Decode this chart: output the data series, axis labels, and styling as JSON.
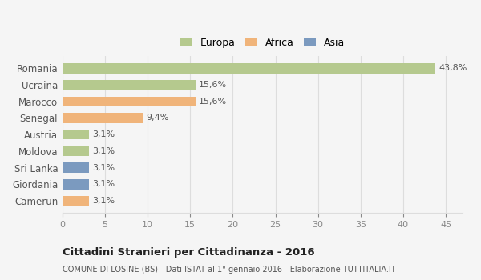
{
  "categories": [
    "Romania",
    "Ucraina",
    "Marocco",
    "Senegal",
    "Austria",
    "Moldova",
    "Sri Lanka",
    "Giordania",
    "Camerun"
  ],
  "values": [
    43.8,
    15.6,
    15.6,
    9.4,
    3.1,
    3.1,
    3.1,
    3.1,
    3.1
  ],
  "labels": [
    "43,8%",
    "15,6%",
    "15,6%",
    "9,4%",
    "3,1%",
    "3,1%",
    "3,1%",
    "3,1%",
    "3,1%"
  ],
  "colors": [
    "#b5c98e",
    "#b5c98e",
    "#f0b47a",
    "#f0b47a",
    "#b5c98e",
    "#b5c98e",
    "#7b9abf",
    "#7b9abf",
    "#f0b47a"
  ],
  "legend_labels": [
    "Europa",
    "Africa",
    "Asia"
  ],
  "legend_colors": [
    "#b5c98e",
    "#f0b47a",
    "#7b9abf"
  ],
  "xlim": [
    0,
    47
  ],
  "xticks": [
    0,
    5,
    10,
    15,
    20,
    25,
    30,
    35,
    40,
    45
  ],
  "title": "Cittadini Stranieri per Cittadinanza - 2016",
  "subtitle": "COMUNE DI LOSINE (BS) - Dati ISTAT al 1° gennaio 2016 - Elaborazione TUTTITALIA.IT",
  "bg_color": "#f5f5f5",
  "grid_color": "#dddddd"
}
